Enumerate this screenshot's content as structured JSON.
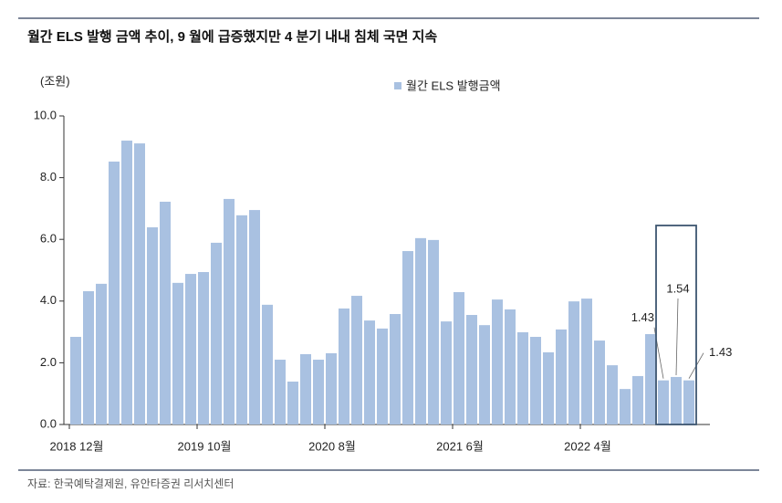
{
  "chart_data": {
    "type": "bar",
    "title": "월간 ELS 발행 금액 추이, 9 월에 급증했지만 4 분기 내내 침체 국면 지속",
    "y_label": "(조원)",
    "source": "자료: 한국예탁결제원, 유안타증권 리서치센터",
    "categories": [
      "2018 12월",
      null,
      null,
      null,
      null,
      null,
      null,
      null,
      null,
      null,
      "2019 10월",
      null,
      null,
      null,
      null,
      null,
      null,
      null,
      null,
      null,
      "2020 8월",
      null,
      null,
      null,
      null,
      null,
      null,
      null,
      null,
      null,
      "2021 6월",
      null,
      null,
      null,
      null,
      null,
      null,
      null,
      null,
      null,
      "2022 4월",
      null,
      null,
      null,
      null,
      null,
      null,
      null,
      null
    ],
    "series": [
      {
        "name": "월간 ELS 발행금액",
        "color": "#a9c1e1",
        "values": [
          2.84,
          4.32,
          4.56,
          8.52,
          9.2,
          9.11,
          6.39,
          7.22,
          4.59,
          4.88,
          4.94,
          5.89,
          7.31,
          6.78,
          6.95,
          3.88,
          2.1,
          1.39,
          2.28,
          2.1,
          2.31,
          3.76,
          4.17,
          3.37,
          3.11,
          3.58,
          5.62,
          6.04,
          5.98,
          3.34,
          4.29,
          3.55,
          3.22,
          4.05,
          3.73,
          2.99,
          2.84,
          2.34,
          3.08,
          3.99,
          4.08,
          2.72,
          1.92,
          1.15,
          1.57,
          2.93,
          1.43,
          1.54,
          1.43
        ]
      }
    ],
    "value_labels": [
      null,
      null,
      null,
      null,
      null,
      null,
      null,
      null,
      null,
      null,
      null,
      null,
      null,
      null,
      null,
      null,
      null,
      null,
      null,
      null,
      null,
      null,
      null,
      null,
      null,
      null,
      null,
      null,
      null,
      null,
      null,
      null,
      null,
      null,
      null,
      null,
      null,
      null,
      null,
      null,
      null,
      null,
      null,
      null,
      null,
      null,
      "1.43",
      "1.54",
      "1.43"
    ],
    "ylim": [
      0,
      10
    ],
    "yticks": [
      {
        "value": 0,
        "label": "0.0"
      },
      {
        "value": 2,
        "label": "2.0"
      },
      {
        "value": 4,
        "label": "4.0"
      },
      {
        "value": 6,
        "label": "6.0"
      },
      {
        "value": 8,
        "label": "8.0"
      },
      {
        "value": 10,
        "label": "10.0"
      }
    ],
    "grid": false
  }
}
